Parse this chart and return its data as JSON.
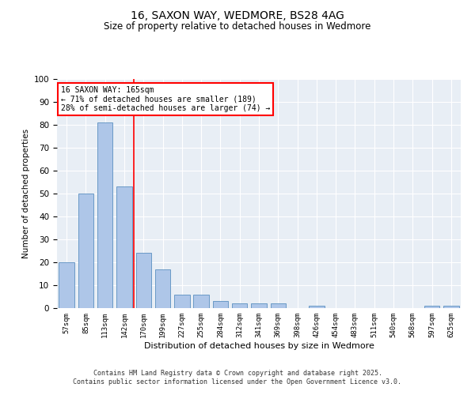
{
  "title": "16, SAXON WAY, WEDMORE, BS28 4AG",
  "subtitle": "Size of property relative to detached houses in Wedmore",
  "xlabel": "Distribution of detached houses by size in Wedmore",
  "ylabel": "Number of detached properties",
  "categories": [
    "57sqm",
    "85sqm",
    "113sqm",
    "142sqm",
    "170sqm",
    "199sqm",
    "227sqm",
    "255sqm",
    "284sqm",
    "312sqm",
    "341sqm",
    "369sqm",
    "398sqm",
    "426sqm",
    "454sqm",
    "483sqm",
    "511sqm",
    "540sqm",
    "568sqm",
    "597sqm",
    "625sqm"
  ],
  "values": [
    20,
    50,
    81,
    53,
    24,
    17,
    6,
    6,
    3,
    2,
    2,
    2,
    0,
    1,
    0,
    0,
    0,
    0,
    0,
    1,
    1
  ],
  "bar_color": "#aec6e8",
  "bar_edge_color": "#5a8fc0",
  "bar_width": 0.8,
  "ylim": [
    0,
    100
  ],
  "yticks": [
    0,
    10,
    20,
    30,
    40,
    50,
    60,
    70,
    80,
    90,
    100
  ],
  "red_line_x": 3.5,
  "annotation_line1": "16 SAXON WAY: 165sqm",
  "annotation_line2": "← 71% of detached houses are smaller (189)",
  "annotation_line3": "28% of semi-detached houses are larger (74) →",
  "annotation_box_color": "white",
  "annotation_box_edge": "red",
  "bg_color": "#e8eef5",
  "footer_line1": "Contains HM Land Registry data © Crown copyright and database right 2025.",
  "footer_line2": "Contains public sector information licensed under the Open Government Licence v3.0."
}
